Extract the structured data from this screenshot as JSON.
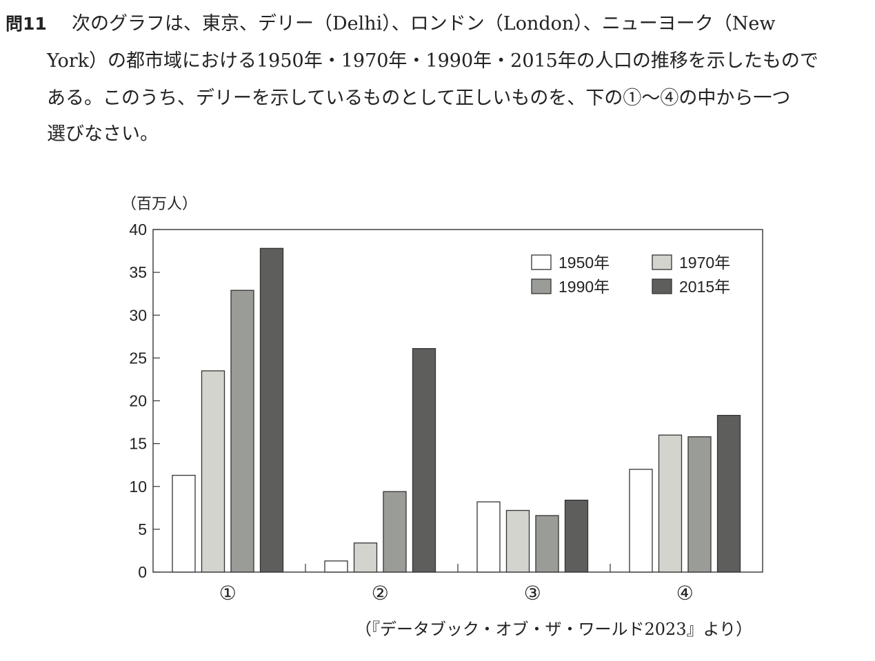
{
  "question": {
    "number": "問11",
    "lines": [
      "次のグラフは、東京、デリー（Delhi）、ロンドン（London）、ニューヨーク（New",
      "York）の都市域における1950年・1970年・1990年・2015年の人口の推移を示したもので",
      "ある。このうち、デリーを示しているものとして正しいものを、下の①～④の中から一つ",
      "選びなさい。"
    ]
  },
  "chart_data": {
    "type": "bar",
    "ylabel": "（百万人）",
    "ylim": [
      0,
      40
    ],
    "yticks": [
      0,
      5,
      10,
      15,
      20,
      25,
      30,
      35,
      40
    ],
    "categories": [
      "①",
      "②",
      "③",
      "④"
    ],
    "series": [
      {
        "name": "1950年",
        "color": "#ffffff",
        "values": [
          11.3,
          1.3,
          8.2,
          12.0
        ]
      },
      {
        "name": "1970年",
        "color": "#d2d4cd",
        "values": [
          23.5,
          3.4,
          7.2,
          16.0
        ]
      },
      {
        "name": "1990年",
        "color": "#9a9c98",
        "values": [
          32.9,
          9.4,
          6.6,
          15.8
        ]
      },
      {
        "name": "2015年",
        "color": "#5e5f5c",
        "values": [
          37.8,
          26.1,
          8.4,
          18.3
        ]
      }
    ],
    "legend": "top-right",
    "grid": false
  },
  "source": "（『データブック・オブ・ザ・ワールド2023』より）"
}
